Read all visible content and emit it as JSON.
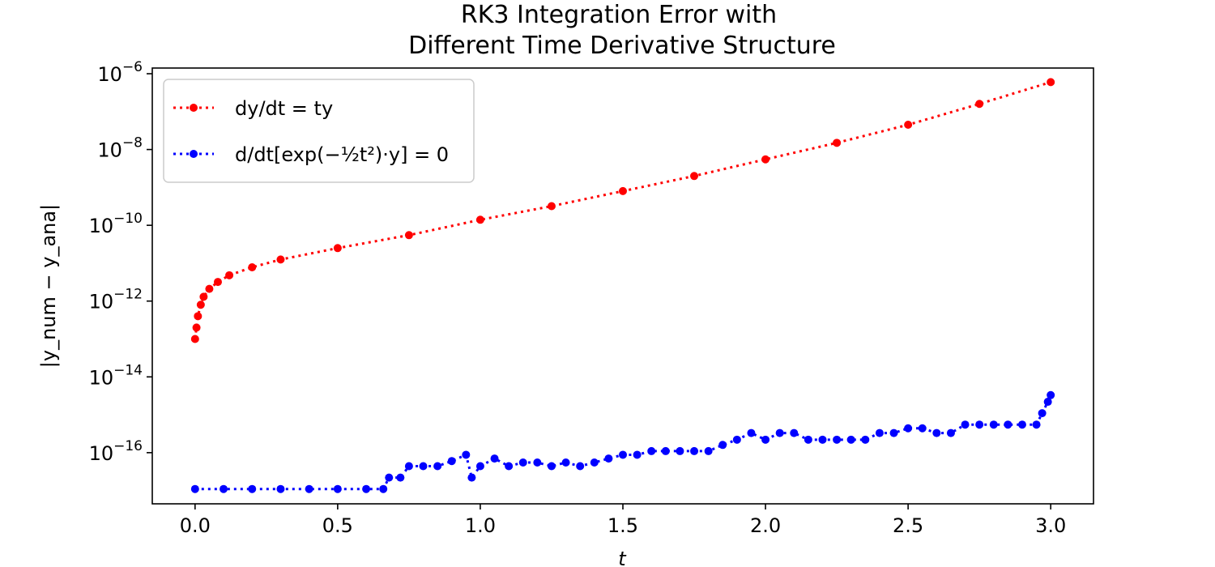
{
  "chart_data": {
    "type": "scatter",
    "title": [
      "RK3 Integration Error with",
      "Different Time Derivative Structure"
    ],
    "xlabel": "t",
    "ylabel": "|y_num − y_ana|",
    "xlim": [
      -0.15,
      3.15
    ],
    "ylim_log10": [
      -17.35,
      -5.85
    ],
    "yscale": "log",
    "grid": false,
    "legend_position": "upper-left",
    "x_ticks": [
      0.0,
      0.5,
      1.0,
      1.5,
      2.0,
      2.5,
      3.0
    ],
    "x_tick_labels": [
      "0.0",
      "0.5",
      "1.0",
      "1.5",
      "2.0",
      "2.5",
      "3.0"
    ],
    "y_ticks_log10": [
      -6,
      -8,
      -10,
      -12,
      -14,
      -16
    ],
    "y_tick_labels": [
      {
        "base": "10",
        "exp": "−6"
      },
      {
        "base": "10",
        "exp": "−8"
      },
      {
        "base": "10",
        "exp": "−10"
      },
      {
        "base": "10",
        "exp": "−12"
      },
      {
        "base": "10",
        "exp": "−14"
      },
      {
        "base": "10",
        "exp": "−16"
      }
    ],
    "series": [
      {
        "name": "dy/dt = ty",
        "color": "#ff0000",
        "style": "dotted line with circle markers",
        "points": [
          [
            0.0,
            1e-13
          ],
          [
            0.005,
            2e-13
          ],
          [
            0.01,
            4e-13
          ],
          [
            0.02,
            8e-13
          ],
          [
            0.03,
            1.3e-12
          ],
          [
            0.05,
            2.1e-12
          ],
          [
            0.08,
            3.2e-12
          ],
          [
            0.12,
            4.8e-12
          ],
          [
            0.2,
            7.8e-12
          ],
          [
            0.3,
            1.25e-11
          ],
          [
            0.5,
            2.5e-11
          ],
          [
            0.75,
            5.5e-11
          ],
          [
            1.0,
            1.4e-10
          ],
          [
            1.25,
            3.2e-10
          ],
          [
            1.5,
            8e-10
          ],
          [
            1.75,
            2e-09
          ],
          [
            2.0,
            5.5e-09
          ],
          [
            2.25,
            1.5e-08
          ],
          [
            2.5,
            4.5e-08
          ],
          [
            2.75,
            1.6e-07
          ],
          [
            3.0,
            6e-07
          ]
        ]
      },
      {
        "name": "d/dt[exp(−½t²)·y] = 0",
        "color": "#0000ff",
        "style": "dotted line with circle markers",
        "points": [
          [
            0.0,
            1.1e-17
          ],
          [
            0.1,
            1.1e-17
          ],
          [
            0.2,
            1.1e-17
          ],
          [
            0.3,
            1.1e-17
          ],
          [
            0.4,
            1.1e-17
          ],
          [
            0.5,
            1.1e-17
          ],
          [
            0.6,
            1.1e-17
          ],
          [
            0.66,
            1.1e-17
          ],
          [
            0.68,
            2.2e-17
          ],
          [
            0.72,
            2.2e-17
          ],
          [
            0.75,
            4.4e-17
          ],
          [
            0.8,
            4.4e-17
          ],
          [
            0.85,
            4.4e-17
          ],
          [
            0.9,
            6e-17
          ],
          [
            0.95,
            8.8e-17
          ],
          [
            0.97,
            2.2e-17
          ],
          [
            1.0,
            4.4e-17
          ],
          [
            1.05,
            7e-17
          ],
          [
            1.1,
            4.4e-17
          ],
          [
            1.15,
            5.5e-17
          ],
          [
            1.2,
            5.5e-17
          ],
          [
            1.25,
            4.4e-17
          ],
          [
            1.3,
            5.5e-17
          ],
          [
            1.35,
            4.4e-17
          ],
          [
            1.4,
            5.5e-17
          ],
          [
            1.45,
            7e-17
          ],
          [
            1.5,
            8.8e-17
          ],
          [
            1.55,
            8.8e-17
          ],
          [
            1.6,
            1.1e-16
          ],
          [
            1.65,
            1.1e-16
          ],
          [
            1.7,
            1.1e-16
          ],
          [
            1.75,
            1.1e-16
          ],
          [
            1.8,
            1.1e-16
          ],
          [
            1.85,
            1.6e-16
          ],
          [
            1.9,
            2.2e-16
          ],
          [
            1.95,
            3.3e-16
          ],
          [
            2.0,
            2.2e-16
          ],
          [
            2.05,
            3.3e-16
          ],
          [
            2.1,
            3.3e-16
          ],
          [
            2.15,
            2.2e-16
          ],
          [
            2.2,
            2.2e-16
          ],
          [
            2.25,
            2.2e-16
          ],
          [
            2.3,
            2.2e-16
          ],
          [
            2.35,
            2.2e-16
          ],
          [
            2.4,
            3.3e-16
          ],
          [
            2.45,
            3.3e-16
          ],
          [
            2.5,
            4.4e-16
          ],
          [
            2.55,
            4.4e-16
          ],
          [
            2.6,
            3.3e-16
          ],
          [
            2.65,
            3.3e-16
          ],
          [
            2.7,
            5.5e-16
          ],
          [
            2.75,
            5.5e-16
          ],
          [
            2.8,
            5.5e-16
          ],
          [
            2.85,
            5.5e-16
          ],
          [
            2.9,
            5.5e-16
          ],
          [
            2.95,
            5.5e-16
          ],
          [
            2.97,
            1.1e-15
          ],
          [
            2.99,
            2.2e-15
          ],
          [
            3.0,
            3.3e-15
          ]
        ]
      }
    ]
  }
}
